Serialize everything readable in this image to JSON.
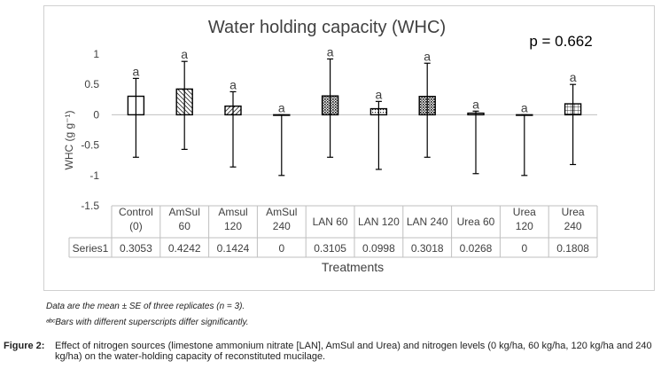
{
  "chart_data": {
    "type": "bar",
    "title": "Water holding capacity (WHC)",
    "annotation": "p = 0.662",
    "xlabel": "Treatments",
    "ylabel": "WHC (g g⁻¹)",
    "ylim": [
      -1.5,
      1
    ],
    "yticks": [
      1,
      0.5,
      0,
      -0.5,
      -1,
      -1.5
    ],
    "ytick_labels": [
      "1",
      "0.5",
      "0",
      "-0.5",
      "-1",
      "-1.5"
    ],
    "categories": [
      [
        "Control",
        "(0)"
      ],
      [
        "AmSul",
        "60"
      ],
      [
        "Amsul",
        "120"
      ],
      [
        "AmSul",
        "240"
      ],
      [
        "LAN 60"
      ],
      [
        "LAN 120"
      ],
      [
        "LAN 240"
      ],
      [
        "Urea 60"
      ],
      [
        "Urea",
        "120"
      ],
      [
        "Urea",
        "240"
      ]
    ],
    "series": [
      {
        "name": "Series1",
        "values": [
          0.3053,
          0.4242,
          0.1424,
          0,
          0.3105,
          0.0998,
          0.3018,
          0.0268,
          0,
          0.1808
        ],
        "value_labels": [
          "0.3053",
          "0.4242",
          "0.1424",
          "0",
          "0.3105",
          "0.0998",
          "0.3018",
          "0.0268",
          "0",
          "0.1808"
        ],
        "error_upper": [
          0.6,
          0.88,
          0.38,
          0,
          0.92,
          0.22,
          0.85,
          0.06,
          0,
          0.5
        ],
        "error_lower": [
          -0.7,
          -0.57,
          -0.86,
          -1.0,
          -0.7,
          -0.9,
          -0.7,
          -0.97,
          -1.0,
          -0.82
        ],
        "patterns": [
          "none",
          "diag-left",
          "diag-right",
          "none",
          "dots-dense",
          "dots",
          "dots-dense",
          "dots",
          "none",
          "grid"
        ]
      }
    ],
    "significance_letters": [
      "a",
      "a",
      "a",
      "a",
      "a",
      "a",
      "a",
      "a",
      "a",
      "a"
    ],
    "grid": false,
    "legend": "data-table"
  },
  "notes": {
    "line1": "Data are the mean ± SE of three replicates (n = 3).",
    "line2": "ᵃᵇᶜBars with different superscripts differ significantly."
  },
  "caption": {
    "label": "Figure 2:",
    "text": "Effect of nitrogen sources (limestone ammonium nitrate [LAN], AmSul and Urea) and nitrogen levels (0 kg/ha, 60 kg/ha, 120 kg/ha and 240 kg/ha) on the water-holding capacity of reconstituted mucilage."
  },
  "colors": {
    "bar_stroke": "#000000",
    "axis": "#bfbfbf",
    "table_border": "#bfbfbf",
    "text": "#404040"
  }
}
